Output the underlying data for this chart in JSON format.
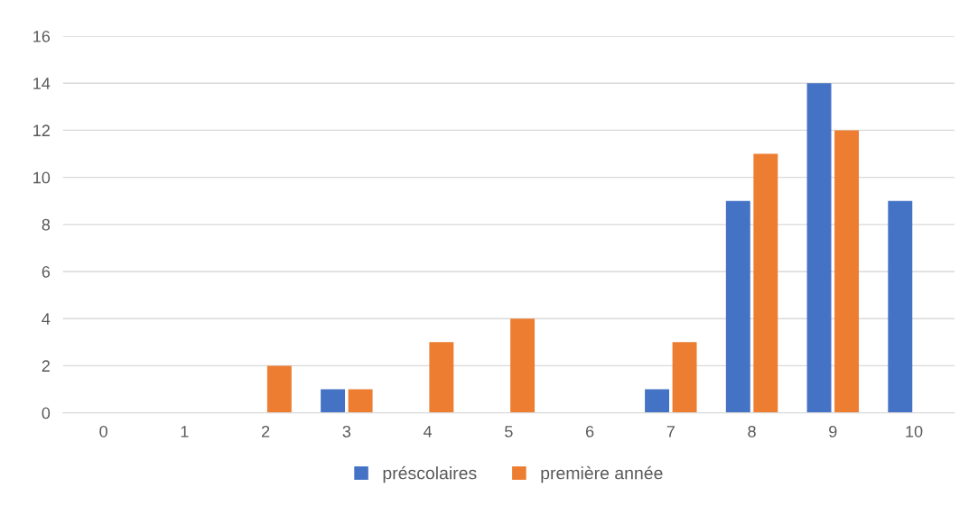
{
  "chart_data": {
    "type": "bar",
    "categories": [
      "0",
      "1",
      "2",
      "3",
      "4",
      "5",
      "6",
      "7",
      "8",
      "9",
      "10"
    ],
    "series": [
      {
        "name": "préscolaires",
        "color": "#4472c4",
        "values": [
          0,
          0,
          0,
          1,
          0,
          0,
          0,
          1,
          9,
          14,
          9
        ]
      },
      {
        "name": "première année",
        "color": "#ed7d31",
        "values": [
          0,
          0,
          2,
          1,
          3,
          4,
          0,
          3,
          11,
          12,
          0
        ]
      }
    ],
    "ylim": [
      0,
      16
    ],
    "yticks": [
      0,
      2,
      4,
      6,
      8,
      10,
      12,
      14,
      16
    ],
    "grid": "y",
    "legend": "bottom"
  }
}
